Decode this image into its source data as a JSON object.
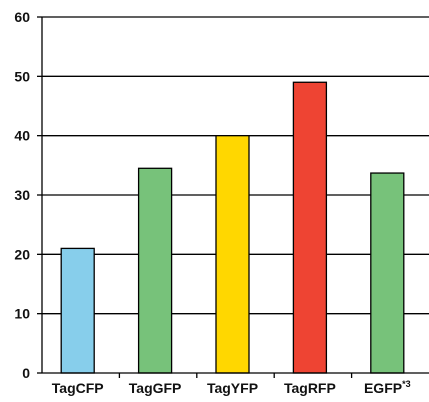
{
  "chart_data": {
    "type": "bar",
    "categories": [
      "TagCFP",
      "TagGFP",
      "TagYFP",
      "TagRFP",
      "EGFP"
    ],
    "category_superscripts": [
      "",
      "",
      "",
      "",
      "*3"
    ],
    "values": [
      21,
      34.5,
      40,
      49,
      33.7
    ],
    "colors": [
      "#87CEEB",
      "#77C27A",
      "#FFD700",
      "#EE4433",
      "#77C27A"
    ],
    "ylim": [
      0,
      60
    ],
    "yticks": [
      0,
      10,
      20,
      30,
      40,
      50,
      60
    ],
    "grid": true,
    "title": "",
    "xlabel": "",
    "ylabel": ""
  }
}
